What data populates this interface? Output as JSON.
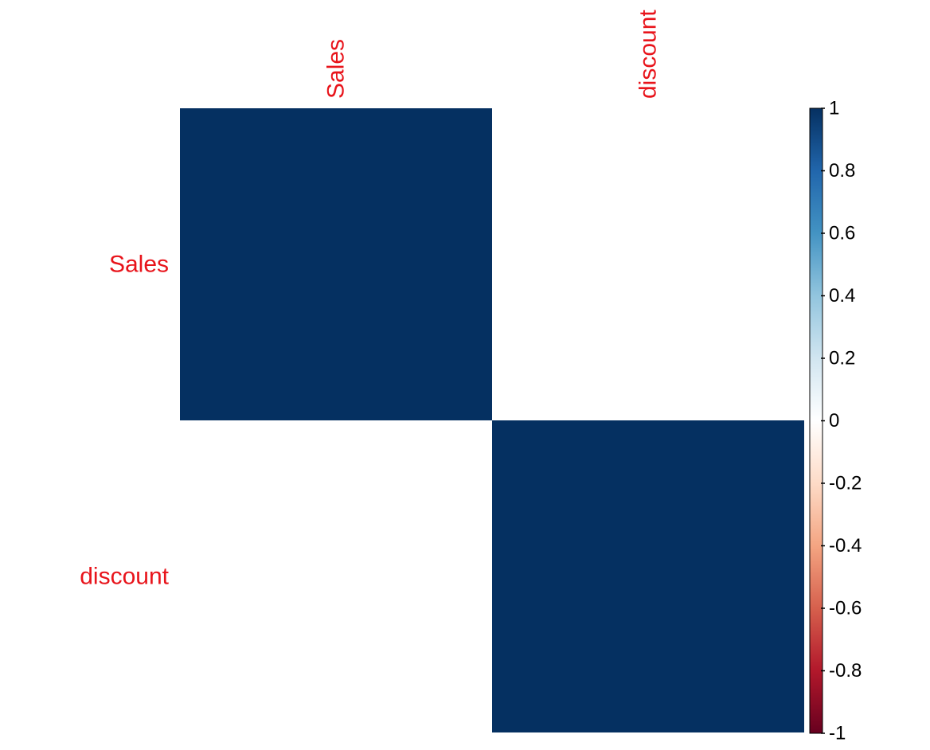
{
  "chart_data": {
    "type": "heatmap",
    "rows": [
      "Sales",
      "discount"
    ],
    "columns": [
      "Sales",
      "discount"
    ],
    "values": [
      [
        1,
        0
      ],
      [
        0,
        1
      ]
    ],
    "colorbar": {
      "min": -1,
      "max": 1,
      "ticks": [
        1,
        0.8,
        0.6,
        0.4,
        0.2,
        0,
        -0.2,
        -0.4,
        -0.6,
        -0.8,
        -1
      ],
      "tick_labels": [
        "1",
        "0.8",
        "0.6",
        "0.4",
        "0.2",
        "0",
        "-0.2",
        "-0.4",
        "-0.6",
        "-0.8",
        "-1"
      ],
      "palette": [
        "#67001F",
        "#B2182B",
        "#D6604D",
        "#F4A582",
        "#FDDBC7",
        "#FFFFFF",
        "#D1E5F0",
        "#92C5DE",
        "#4393C3",
        "#2166AC",
        "#053061"
      ]
    },
    "label_color": "#E8141B"
  }
}
